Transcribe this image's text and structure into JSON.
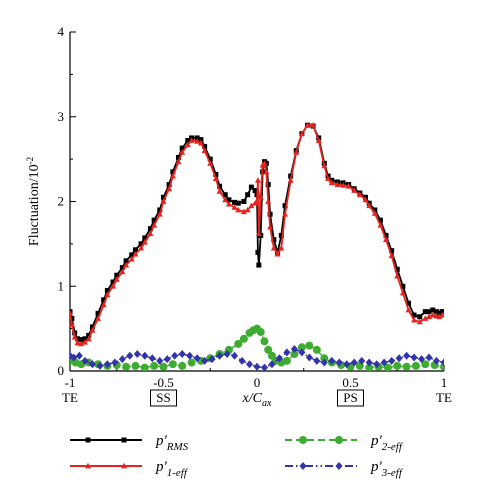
{
  "chart_data": {
    "type": "line",
    "xlabel": "x/C",
    "xlabel_sub": "ax",
    "ylabel": "Fluctuation/10",
    "ylabel_exp": "-2",
    "xlim": [
      -1,
      1
    ],
    "ylim": [
      0,
      4
    ],
    "x_ticks": [
      -1,
      -0.5,
      0,
      0.5,
      1
    ],
    "x_tick_labels": [
      "-1",
      "-0.5",
      "0",
      "0.5",
      "1"
    ],
    "y_ticks": [
      0,
      1,
      2,
      3,
      4
    ],
    "y_tick_labels": [
      "0",
      "1",
      "2",
      "3",
      "4"
    ],
    "under_axis_labels": [
      {
        "x": -1,
        "text": "TE",
        "boxed": false
      },
      {
        "x": -0.5,
        "text": "SS",
        "boxed": true
      },
      {
        "x": 0.5,
        "text": "PS",
        "boxed": true
      },
      {
        "x": 1,
        "text": "TE",
        "boxed": false
      }
    ],
    "legend_position": "bottom",
    "series": [
      {
        "name": "p'",
        "name_sub": "RMS",
        "color": "#000000",
        "dash": "solid",
        "marker": "square",
        "x": [
          -1,
          -0.99,
          -0.975,
          -0.96,
          -0.94,
          -0.92,
          -0.9,
          -0.88,
          -0.85,
          -0.82,
          -0.8,
          -0.77,
          -0.75,
          -0.72,
          -0.7,
          -0.67,
          -0.65,
          -0.62,
          -0.6,
          -0.57,
          -0.55,
          -0.52,
          -0.5,
          -0.47,
          -0.45,
          -0.42,
          -0.4,
          -0.37,
          -0.35,
          -0.32,
          -0.3,
          -0.28,
          -0.25,
          -0.22,
          -0.2,
          -0.17,
          -0.15,
          -0.12,
          -0.1,
          -0.07,
          -0.05,
          -0.03,
          -0.01,
          0,
          0.005,
          0.01,
          0.02,
          0.03,
          0.04,
          0.05,
          0.06,
          0.07,
          0.09,
          0.11,
          0.13,
          0.15,
          0.18,
          0.21,
          0.24,
          0.27,
          0.3,
          0.33,
          0.36,
          0.38,
          0.4,
          0.43,
          0.46,
          0.49,
          0.52,
          0.55,
          0.58,
          0.6,
          0.63,
          0.66,
          0.69,
          0.72,
          0.75,
          0.78,
          0.81,
          0.84,
          0.87,
          0.9,
          0.92,
          0.94,
          0.96,
          0.975,
          0.99,
          1
        ],
        "y": [
          0.7,
          0.62,
          0.45,
          0.38,
          0.37,
          0.38,
          0.42,
          0.52,
          0.68,
          0.84,
          0.95,
          1.05,
          1.13,
          1.22,
          1.3,
          1.37,
          1.43,
          1.5,
          1.57,
          1.68,
          1.78,
          1.9,
          2.05,
          2.2,
          2.35,
          2.52,
          2.63,
          2.72,
          2.75,
          2.75,
          2.73,
          2.65,
          2.5,
          2.32,
          2.18,
          2.08,
          2.02,
          1.99,
          1.98,
          2.0,
          2.08,
          2.17,
          2.13,
          2.08,
          1.4,
          1.25,
          1.6,
          2.35,
          2.47,
          2.45,
          2.2,
          1.85,
          1.55,
          1.4,
          1.6,
          1.95,
          2.3,
          2.6,
          2.8,
          2.9,
          2.89,
          2.75,
          2.45,
          2.3,
          2.25,
          2.23,
          2.22,
          2.2,
          2.15,
          2.1,
          2.05,
          1.98,
          1.9,
          1.78,
          1.6,
          1.42,
          1.2,
          1.0,
          0.8,
          0.66,
          0.64,
          0.7,
          0.7,
          0.72,
          0.7,
          0.68,
          0.7,
          0.7
        ]
      },
      {
        "name": "p'",
        "name_sub": "1-eff",
        "color": "#e8231e",
        "dash": "solid",
        "marker": "triangle",
        "x": [
          -1,
          -0.99,
          -0.975,
          -0.96,
          -0.94,
          -0.92,
          -0.9,
          -0.88,
          -0.85,
          -0.82,
          -0.8,
          -0.77,
          -0.75,
          -0.72,
          -0.7,
          -0.67,
          -0.65,
          -0.62,
          -0.6,
          -0.57,
          -0.55,
          -0.52,
          -0.5,
          -0.47,
          -0.45,
          -0.42,
          -0.4,
          -0.37,
          -0.35,
          -0.32,
          -0.3,
          -0.28,
          -0.25,
          -0.22,
          -0.2,
          -0.17,
          -0.15,
          -0.12,
          -0.1,
          -0.07,
          -0.05,
          -0.03,
          -0.01,
          0,
          0.005,
          0.01,
          0.02,
          0.03,
          0.04,
          0.05,
          0.06,
          0.07,
          0.09,
          0.11,
          0.13,
          0.15,
          0.18,
          0.21,
          0.24,
          0.27,
          0.3,
          0.33,
          0.36,
          0.38,
          0.4,
          0.43,
          0.46,
          0.49,
          0.52,
          0.55,
          0.58,
          0.6,
          0.63,
          0.66,
          0.69,
          0.72,
          0.75,
          0.78,
          0.81,
          0.84,
          0.87,
          0.9,
          0.92,
          0.94,
          0.96,
          0.975,
          0.99,
          1
        ],
        "y": [
          0.68,
          0.55,
          0.4,
          0.33,
          0.32,
          0.34,
          0.38,
          0.48,
          0.62,
          0.78,
          0.9,
          1.0,
          1.08,
          1.17,
          1.25,
          1.32,
          1.38,
          1.45,
          1.52,
          1.62,
          1.72,
          1.85,
          2.0,
          2.15,
          2.3,
          2.47,
          2.58,
          2.67,
          2.72,
          2.71,
          2.69,
          2.6,
          2.45,
          2.27,
          2.12,
          2.02,
          1.97,
          1.93,
          1.9,
          1.88,
          1.9,
          1.95,
          1.98,
          2.0,
          2.25,
          1.62,
          2.05,
          2.43,
          2.45,
          2.35,
          2.0,
          1.7,
          1.45,
          1.38,
          1.45,
          1.85,
          2.25,
          2.58,
          2.8,
          2.9,
          2.9,
          2.72,
          2.42,
          2.27,
          2.22,
          2.2,
          2.19,
          2.18,
          2.13,
          2.08,
          2.02,
          1.95,
          1.86,
          1.72,
          1.55,
          1.36,
          1.12,
          0.92,
          0.72,
          0.6,
          0.58,
          0.62,
          0.64,
          0.66,
          0.65,
          0.64,
          0.66,
          0.66
        ]
      },
      {
        "name": "p'",
        "name_sub": "2-eff",
        "color": "#3dac31",
        "dash": "dashed",
        "marker": "circle",
        "x": [
          -1,
          -0.97,
          -0.94,
          -0.9,
          -0.85,
          -0.8,
          -0.75,
          -0.7,
          -0.65,
          -0.6,
          -0.55,
          -0.5,
          -0.45,
          -0.4,
          -0.35,
          -0.3,
          -0.25,
          -0.2,
          -0.15,
          -0.1,
          -0.07,
          -0.04,
          -0.02,
          0,
          0.02,
          0.04,
          0.06,
          0.08,
          0.1,
          0.13,
          0.16,
          0.2,
          0.24,
          0.28,
          0.32,
          0.36,
          0.4,
          0.45,
          0.5,
          0.55,
          0.6,
          0.65,
          0.7,
          0.75,
          0.8,
          0.85,
          0.9,
          0.95,
          1
        ],
        "y": [
          0.12,
          0.1,
          0.08,
          0.1,
          0.08,
          0.06,
          0.07,
          0.05,
          0.06,
          0.04,
          0.06,
          0.05,
          0.08,
          0.06,
          0.1,
          0.12,
          0.15,
          0.2,
          0.25,
          0.32,
          0.38,
          0.45,
          0.48,
          0.5,
          0.46,
          0.35,
          0.25,
          0.18,
          0.12,
          0.1,
          0.12,
          0.2,
          0.28,
          0.3,
          0.25,
          0.15,
          0.1,
          0.07,
          0.05,
          0.06,
          0.04,
          0.05,
          0.04,
          0.06,
          0.05,
          0.06,
          0.08,
          0.07,
          0.05
        ]
      },
      {
        "name": "p'",
        "name_sub": "3-eff",
        "color": "#3333aa",
        "dash": "dashdotdot",
        "marker": "diamond",
        "x": [
          -1,
          -0.98,
          -0.95,
          -0.92,
          -0.88,
          -0.84,
          -0.8,
          -0.76,
          -0.72,
          -0.68,
          -0.64,
          -0.6,
          -0.56,
          -0.52,
          -0.48,
          -0.44,
          -0.4,
          -0.36,
          -0.32,
          -0.28,
          -0.24,
          -0.2,
          -0.16,
          -0.12,
          -0.08,
          -0.04,
          0,
          0.04,
          0.08,
          0.12,
          0.16,
          0.2,
          0.24,
          0.28,
          0.32,
          0.36,
          0.4,
          0.44,
          0.48,
          0.52,
          0.56,
          0.6,
          0.64,
          0.68,
          0.72,
          0.76,
          0.8,
          0.84,
          0.88,
          0.92,
          0.96,
          1
        ],
        "y": [
          0.18,
          0.16,
          0.18,
          0.12,
          0.08,
          0.06,
          0.08,
          0.1,
          0.14,
          0.18,
          0.2,
          0.18,
          0.15,
          0.12,
          0.14,
          0.18,
          0.2,
          0.18,
          0.15,
          0.12,
          0.14,
          0.18,
          0.2,
          0.18,
          0.12,
          0.08,
          0.05,
          0.04,
          0.08,
          0.15,
          0.22,
          0.26,
          0.22,
          0.16,
          0.12,
          0.1,
          0.12,
          0.1,
          0.08,
          0.1,
          0.12,
          0.1,
          0.08,
          0.1,
          0.12,
          0.15,
          0.18,
          0.16,
          0.14,
          0.16,
          0.12,
          0.1
        ]
      }
    ]
  }
}
